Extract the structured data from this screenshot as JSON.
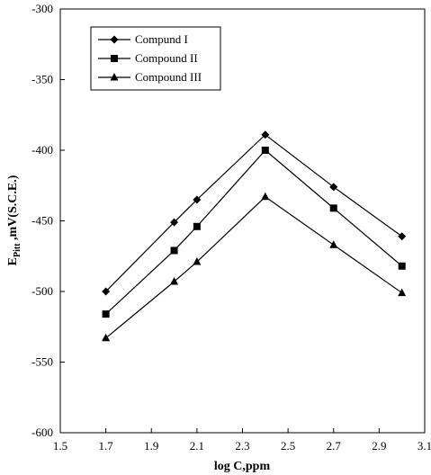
{
  "chart_data": {
    "type": "line",
    "xlabel": "log C,ppm",
    "ylabel_main": "E",
    "ylabel_sub": "Pitt",
    "ylabel_rest": " ,mV(S.C.E.)",
    "xlim": [
      1.5,
      3.1
    ],
    "ylim": [
      -600,
      -300
    ],
    "xticks": [
      "1.5",
      "1.7",
      "1.9",
      "2.1",
      "2.3",
      "2.5",
      "2.7",
      "2.9",
      "3.1"
    ],
    "yticks": [
      "-300",
      "-350",
      "-400",
      "-450",
      "-500",
      "-550",
      "-600"
    ],
    "grid": false,
    "legend_placement": "top-left",
    "x": [
      1.7,
      2.0,
      2.1,
      2.4,
      2.7,
      3.0
    ],
    "series": [
      {
        "name": "Compund I",
        "marker": "diamond",
        "values": [
          -500,
          -451,
          -435,
          -389,
          -426,
          -461
        ]
      },
      {
        "name": "Compound II",
        "marker": "square",
        "values": [
          -516,
          -471,
          -454,
          -400,
          -441,
          -482
        ]
      },
      {
        "name": "Compound III",
        "marker": "triangle",
        "values": [
          -533,
          -493,
          -479,
          -433,
          -467,
          -501
        ]
      }
    ]
  }
}
